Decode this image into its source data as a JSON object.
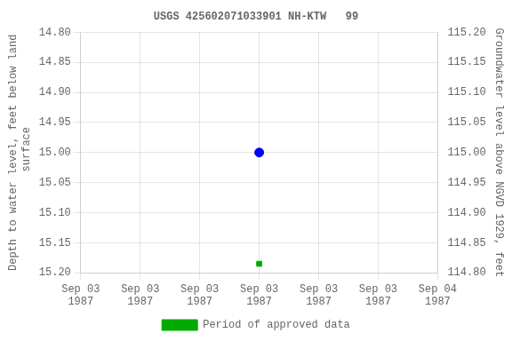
{
  "chart_data": {
    "type": "scatter",
    "title": "USGS 425602071033901 NH-KTW   99",
    "y_label": "Depth to water level, feet below land\n surface",
    "y2_label": "Groundwater level above NGVD 1929, feet",
    "xlim": [
      0,
      6
    ],
    "xticks": [
      {
        "value": 0,
        "label": "Sep 03\n1987"
      },
      {
        "value": 1,
        "label": "Sep 03\n1987"
      },
      {
        "value": 2,
        "label": "Sep 03\n1987"
      },
      {
        "value": 3,
        "label": "Sep 03\n1987"
      },
      {
        "value": 4,
        "label": "Sep 03\n1987"
      },
      {
        "value": 5,
        "label": "Sep 03\n1987"
      },
      {
        "value": 6,
        "label": "Sep 04\n1987"
      }
    ],
    "ylim": [
      15.2,
      14.8
    ],
    "yticks": [
      {
        "value": 14.8,
        "label": "14.80"
      },
      14.85,
      {
        "value": 14.9,
        "label": "14.90"
      },
      14.95,
      {
        "value": 15.0,
        "label": "15.00"
      },
      15.05,
      {
        "value": 15.1,
        "label": "15.10"
      },
      15.15,
      {
        "value": 15.2,
        "label": "15.20"
      }
    ],
    "y2lim": [
      114.8,
      115.2
    ],
    "y2ticks": [
      {
        "value": 115.2,
        "label": "115.20"
      },
      115.15,
      {
        "value": 115.1,
        "label": "115.10"
      },
      115.05,
      {
        "value": 115.0,
        "label": "115.00"
      },
      114.95,
      {
        "value": 114.9,
        "label": "114.90"
      },
      114.85,
      {
        "value": 114.8,
        "label": "114.80"
      }
    ],
    "series": [
      {
        "color": "#0000ff",
        "marker": "circle",
        "x": [
          3
        ],
        "values": [
          15.0
        ]
      },
      {
        "name": "Period of approved data",
        "color": "#00aa00",
        "marker": "square",
        "x": [
          3
        ],
        "values": [
          15.185
        ]
      }
    ],
    "grid": true,
    "legend": "bottom"
  }
}
